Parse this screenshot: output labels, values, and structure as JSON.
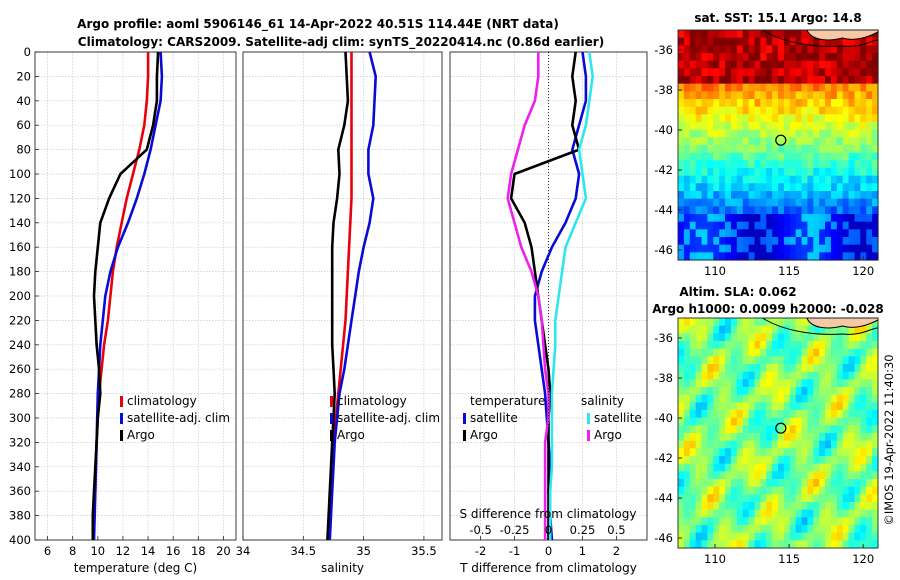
{
  "titles": {
    "line1": "Argo profile: aoml 5906146_61 14-Apr-2022 40.51S 114.44E (NRT data)",
    "line2": "Climatology: CARS2009. Satellite-adj clim: synTS_20220414.nc (0.86d earlier)",
    "sst": "sat. SST: 15.1 Argo: 14.8",
    "sla1": "Altim. SLA: 0.062",
    "sla2": "Argo h1000: 0.0099 h2000: -0.028"
  },
  "watermark": "©IMOS 19-Apr-2022 11:40:30",
  "colors": {
    "climatology": "#e8000b",
    "satellite": "#0a0ad6",
    "argo": "#000000",
    "sat_salinity": "#2ee6ee",
    "argo_salinity": "#ee20ee"
  },
  "chart_data": [
    {
      "type": "line",
      "name": "temperature",
      "xlabel": "temperature (deg C)",
      "ylabel": "",
      "xlim": [
        5,
        21
      ],
      "ylim": [
        0,
        400
      ],
      "xticks": [
        6,
        8,
        10,
        12,
        14,
        16,
        18,
        20
      ],
      "xtick_labels": [
        "6",
        "8",
        "10",
        "12",
        "14",
        "16",
        "18",
        "20"
      ],
      "yticks": [
        0,
        20,
        40,
        60,
        80,
        100,
        120,
        140,
        160,
        180,
        200,
        220,
        240,
        260,
        280,
        300,
        320,
        340,
        360,
        380,
        400
      ],
      "ytick_labels": [
        "0",
        "20",
        "40",
        "60",
        "80",
        "100",
        "120",
        "140",
        "160",
        "180",
        "200",
        "220",
        "240",
        "260",
        "280",
        "300",
        "320",
        "340",
        "360",
        "380",
        "400"
      ],
      "legend": [
        "climatology",
        "satellite-adj. clim",
        "Argo"
      ],
      "legend_position": "lower-right",
      "series": [
        {
          "name": "climatology",
          "color": "#e8000b",
          "x": [
            14.0,
            14.0,
            13.9,
            13.7,
            13.3,
            12.8,
            12.3,
            11.9,
            11.5,
            11.2,
            11.0,
            10.8,
            10.5,
            10.3,
            10.1,
            10.0,
            9.9,
            9.85,
            9.8,
            9.7,
            9.6
          ],
          "y": [
            0,
            20,
            40,
            60,
            80,
            100,
            120,
            140,
            160,
            180,
            200,
            220,
            240,
            260,
            280,
            300,
            320,
            340,
            360,
            380,
            400
          ]
        },
        {
          "name": "satellite-adj. clim",
          "color": "#0a0ad6",
          "x": [
            15.0,
            15.1,
            15.0,
            14.6,
            14.2,
            13.7,
            13.1,
            12.4,
            11.6,
            11.0,
            10.6,
            10.4,
            10.2,
            10.1,
            10.0,
            9.95,
            9.9,
            9.85,
            9.8,
            9.75,
            9.7
          ],
          "y": [
            0,
            20,
            40,
            60,
            80,
            100,
            120,
            140,
            160,
            180,
            200,
            220,
            240,
            260,
            280,
            300,
            320,
            340,
            360,
            380,
            400
          ]
        },
        {
          "name": "Argo",
          "color": "#000000",
          "x": [
            14.8,
            14.7,
            14.7,
            14.4,
            13.9,
            11.8,
            10.9,
            10.2,
            10.0,
            9.8,
            9.7,
            9.8,
            9.9,
            10.1,
            10.2,
            10.0,
            9.9,
            9.8,
            9.7,
            9.6,
            9.6
          ],
          "y": [
            0,
            20,
            40,
            60,
            80,
            100,
            120,
            140,
            160,
            180,
            200,
            220,
            240,
            260,
            280,
            300,
            320,
            340,
            360,
            380,
            400
          ]
        }
      ]
    },
    {
      "type": "line",
      "name": "salinity",
      "xlabel": "salinity",
      "xlim": [
        34.0,
        35.65
      ],
      "ylim": [
        0,
        400
      ],
      "xticks": [
        34,
        34.5,
        35,
        35.5
      ],
      "xtick_labels": [
        "34",
        "34.5",
        "35",
        "35.5"
      ],
      "legend": [
        "climatology",
        "satellite-adj. clim",
        "Argo"
      ],
      "legend_position": "lower-right",
      "series": [
        {
          "name": "climatology",
          "color": "#e8000b",
          "x": [
            34.9,
            34.9,
            34.9,
            34.9,
            34.9,
            34.9,
            34.9,
            34.89,
            34.88,
            34.87,
            34.86,
            34.85,
            34.83,
            34.81,
            34.79,
            34.77,
            34.75,
            34.74,
            34.73,
            34.72,
            34.71
          ],
          "y": [
            0,
            20,
            40,
            60,
            80,
            100,
            120,
            140,
            160,
            180,
            200,
            220,
            240,
            260,
            280,
            300,
            320,
            340,
            360,
            380,
            400
          ]
        },
        {
          "name": "satellite-adj. clim",
          "color": "#0a0ad6",
          "x": [
            35.05,
            35.1,
            35.09,
            35.08,
            35.04,
            35.04,
            35.08,
            35.05,
            35.0,
            34.96,
            34.93,
            34.9,
            34.87,
            34.84,
            34.8,
            34.78,
            34.76,
            34.75,
            34.74,
            34.73,
            34.72
          ],
          "y": [
            0,
            20,
            40,
            60,
            80,
            100,
            120,
            140,
            160,
            180,
            200,
            220,
            240,
            260,
            280,
            300,
            320,
            340,
            360,
            380,
            400
          ]
        },
        {
          "name": "Argo",
          "color": "#000000",
          "x": [
            34.85,
            34.86,
            34.87,
            34.84,
            34.79,
            34.8,
            34.78,
            34.75,
            34.74,
            34.74,
            34.74,
            34.74,
            34.74,
            34.75,
            34.76,
            34.75,
            34.74,
            34.73,
            34.72,
            34.71,
            34.7
          ],
          "y": [
            0,
            20,
            40,
            60,
            80,
            100,
            120,
            140,
            160,
            180,
            200,
            220,
            240,
            260,
            280,
            300,
            320,
            340,
            360,
            380,
            400
          ]
        }
      ]
    },
    {
      "type": "line",
      "name": "difference from climatology",
      "xlabel": "T difference from climatology",
      "top_xlabel": "S difference from climatology",
      "xlim": [
        -2.9,
        2.9
      ],
      "ylim": [
        0,
        400
      ],
      "xticks": [
        -2,
        -1,
        0,
        1,
        2
      ],
      "xtick_labels": [
        "-2",
        "-1",
        "0",
        "1",
        "2"
      ],
      "s_xticks": [
        -0.5,
        -0.25,
        0,
        0.25,
        0.5
      ],
      "s_xtick_labels": [
        "-0.5",
        "-0.25",
        "0",
        "0.25",
        "0.5"
      ],
      "s_scale_per_T_unit": 0.25,
      "legend_left_header": "temperature",
      "legend_right_header": "salinity",
      "legend": [
        "satellite",
        "Argo",
        "satellite",
        "Argo"
      ],
      "legend_position": "lower-center",
      "series": [
        {
          "name": "temperature satellite",
          "color": "#0a0ad6",
          "x": [
            1.0,
            1.1,
            1.1,
            0.9,
            0.7,
            0.9,
            0.8,
            0.5,
            0.1,
            -0.2,
            -0.4,
            -0.4,
            -0.3,
            -0.2,
            -0.1,
            -0.05,
            0,
            0.05,
            0,
            0.05,
            0.1
          ],
          "y": [
            0,
            20,
            40,
            60,
            80,
            100,
            120,
            140,
            160,
            180,
            200,
            220,
            240,
            260,
            280,
            300,
            320,
            340,
            360,
            380,
            400
          ]
        },
        {
          "name": "temperature Argo",
          "color": "#000000",
          "x": [
            0.8,
            0.7,
            0.8,
            0.7,
            0.9,
            -1.0,
            -1.1,
            -0.7,
            -0.5,
            -0.4,
            -0.3,
            -0.2,
            -0.1,
            0,
            0.05,
            0,
            0,
            0,
            0,
            0,
            0
          ],
          "y": [
            0,
            20,
            40,
            60,
            80,
            100,
            120,
            140,
            160,
            180,
            200,
            220,
            240,
            260,
            280,
            300,
            320,
            340,
            360,
            380,
            400
          ]
        },
        {
          "name": "salinity satellite",
          "color": "#2ee6ee",
          "x": [
            1.2,
            1.3,
            1.2,
            1.1,
            0.9,
            1.0,
            1.1,
            0.8,
            0.5,
            0.4,
            0.3,
            0.2,
            0.2,
            0.15,
            0.1,
            0.1,
            0.1,
            0.1,
            0.05,
            0.05,
            0.05
          ],
          "y": [
            0,
            20,
            40,
            60,
            80,
            100,
            120,
            140,
            160,
            180,
            200,
            220,
            240,
            260,
            280,
            300,
            320,
            340,
            360,
            380,
            400
          ]
        },
        {
          "name": "salinity Argo",
          "color": "#ee20ee",
          "x": [
            -0.3,
            -0.3,
            -0.4,
            -0.7,
            -0.9,
            -1.1,
            -1.2,
            -1.0,
            -0.8,
            -0.5,
            -0.3,
            -0.2,
            -0.15,
            -0.1,
            0,
            0,
            -0.1,
            -0.1,
            -0.1,
            -0.1,
            -0.1
          ],
          "y": [
            0,
            20,
            40,
            60,
            80,
            100,
            120,
            140,
            160,
            180,
            200,
            220,
            240,
            260,
            280,
            300,
            320,
            340,
            360,
            380,
            400
          ]
        }
      ]
    },
    {
      "type": "heatmap",
      "name": "satellite SST map",
      "title": "sat. SST: 15.1 Argo: 14.8",
      "xlim": [
        107.5,
        121
      ],
      "ylim": [
        -46.5,
        -35
      ],
      "xticks": [
        110,
        115,
        120
      ],
      "xtick_labels": [
        "110",
        "115",
        "120"
      ],
      "yticks": [
        -36,
        -38,
        -40,
        -42,
        -44,
        -46
      ],
      "ytick_labels": [
        "-36",
        "-38",
        "-40",
        "-42",
        "-44",
        "-46"
      ],
      "marker": {
        "lon": 114.44,
        "lat": -40.51
      }
    },
    {
      "type": "heatmap",
      "name": "altimetry SLA map",
      "title": "Altim. SLA: 0.062",
      "xlim": [
        107.5,
        121
      ],
      "ylim": [
        -46.5,
        -35
      ],
      "xticks": [
        110,
        115,
        120
      ],
      "xtick_labels": [
        "110",
        "115",
        "120"
      ],
      "yticks": [
        -36,
        -38,
        -40,
        -42,
        -44,
        -46
      ],
      "ytick_labels": [
        "-36",
        "-38",
        "-40",
        "-42",
        "-44",
        "-46"
      ],
      "marker": {
        "lon": 114.44,
        "lat": -40.51
      }
    }
  ]
}
